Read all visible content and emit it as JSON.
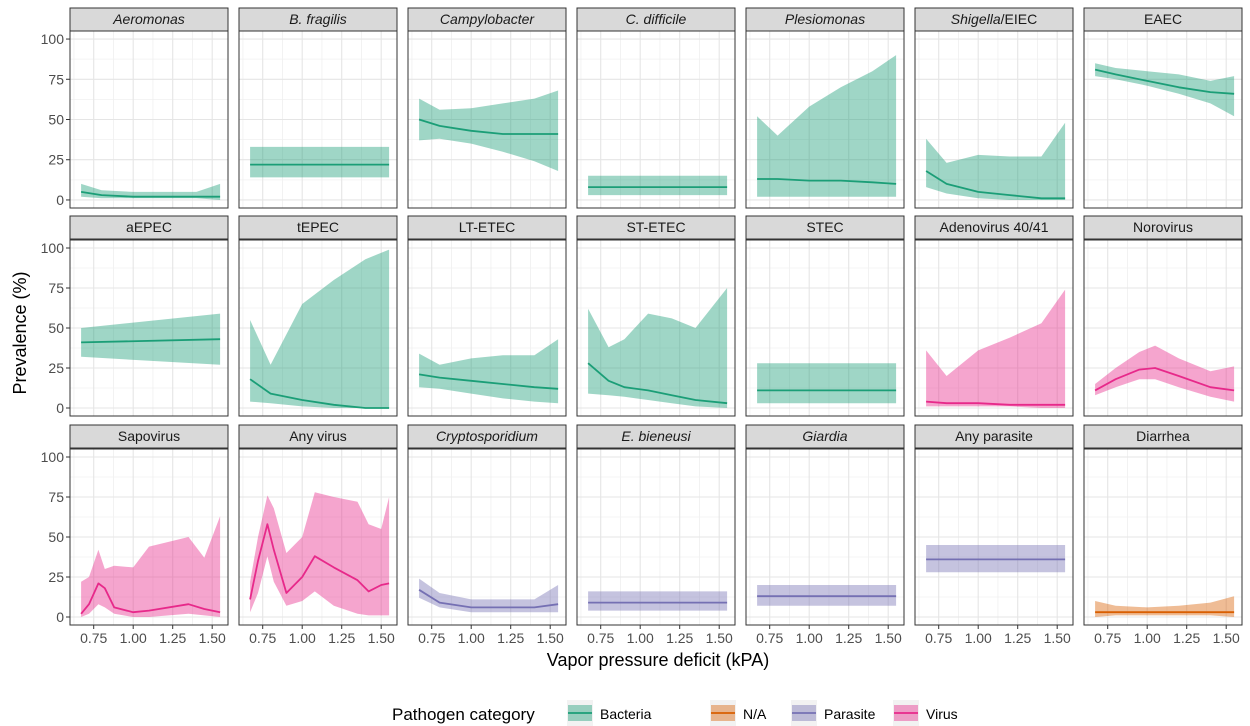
{
  "xlabel": "Vapor pressure deficit (kPA)",
  "ylabel": "Prevalence (%)",
  "x_ticks": [
    0.75,
    1.0,
    1.25,
    1.5
  ],
  "x_tick_labels": [
    "0.75",
    "1.00",
    "1.25",
    "1.50"
  ],
  "y_ticks": [
    0,
    25,
    50,
    75,
    100
  ],
  "y_tick_labels": [
    "0",
    "25",
    "50",
    "75",
    "100"
  ],
  "legend": {
    "title": "Pathogen category",
    "position": "bottom",
    "items": [
      {
        "label": "Bacteria",
        "color": "#1b9e77"
      },
      {
        "label": "N/A",
        "color": "#d95f02"
      },
      {
        "label": "Parasite",
        "color": "#7570b3"
      },
      {
        "label": "Virus",
        "color": "#e7298a"
      }
    ]
  },
  "chart_data": {
    "type": "line",
    "layout": "facet grid 3 rows x 7 columns, shared axes",
    "xlabel": "Vapor pressure deficit (kPA)",
    "ylabel": "Prevalence (%)",
    "xlim": [
      0.6,
      1.6
    ],
    "ylim": [
      -5,
      105
    ],
    "grid": true,
    "confidence_band": true,
    "panels": [
      {
        "title": "Aeromonas",
        "italic": true,
        "category": "Bacteria",
        "x": [
          0.67,
          0.8,
          1.0,
          1.2,
          1.4,
          1.55
        ],
        "y": [
          5,
          3,
          2,
          2,
          2,
          2
        ],
        "lower": [
          2,
          1,
          1,
          1,
          1,
          0
        ],
        "upper": [
          10,
          6,
          5,
          5,
          5,
          10
        ]
      },
      {
        "title": "B. fragilis",
        "italic": true,
        "category": "Bacteria",
        "x": [
          0.67,
          1.55
        ],
        "y": [
          22,
          22
        ],
        "lower": [
          14,
          14
        ],
        "upper": [
          33,
          33
        ]
      },
      {
        "title": "Campylobacter",
        "italic": true,
        "category": "Bacteria",
        "x": [
          0.67,
          0.8,
          1.0,
          1.2,
          1.4,
          1.55
        ],
        "y": [
          50,
          46,
          43,
          41,
          41,
          41
        ],
        "lower": [
          37,
          38,
          35,
          30,
          24,
          18
        ],
        "upper": [
          63,
          56,
          57,
          60,
          63,
          68
        ]
      },
      {
        "title": "C. difficile",
        "italic": true,
        "category": "Bacteria",
        "x": [
          0.67,
          1.55
        ],
        "y": [
          8,
          8
        ],
        "lower": [
          3,
          3
        ],
        "upper": [
          15,
          15
        ]
      },
      {
        "title": "Plesiomonas",
        "italic": true,
        "category": "Bacteria",
        "x": [
          0.67,
          0.8,
          1.0,
          1.2,
          1.4,
          1.55
        ],
        "y": [
          13,
          13,
          12,
          12,
          11,
          10
        ],
        "lower": [
          2,
          2,
          2,
          2,
          2,
          2
        ],
        "upper": [
          52,
          40,
          58,
          70,
          80,
          90
        ]
      },
      {
        "title": "Shigella/EIEC",
        "italic_part": "Shigella",
        "plain_part": "/EIEC",
        "category": "Bacteria",
        "x": [
          0.67,
          0.8,
          1.0,
          1.2,
          1.4,
          1.55
        ],
        "y": [
          18,
          10,
          5,
          3,
          1,
          1
        ],
        "lower": [
          8,
          4,
          1,
          0,
          0,
          0
        ],
        "upper": [
          38,
          23,
          28,
          27,
          27,
          48
        ]
      },
      {
        "title": "EAEC",
        "italic": false,
        "category": "Bacteria",
        "x": [
          0.67,
          0.8,
          1.0,
          1.2,
          1.4,
          1.55
        ],
        "y": [
          81,
          78,
          74,
          70,
          67,
          66
        ],
        "lower": [
          77,
          75,
          71,
          66,
          60,
          52
        ],
        "upper": [
          85,
          82,
          80,
          78,
          74,
          77
        ]
      },
      {
        "title": "aEPEC",
        "italic": false,
        "category": "Bacteria",
        "x": [
          0.67,
          1.55
        ],
        "y": [
          41,
          43
        ],
        "lower": [
          32,
          27
        ],
        "upper": [
          50,
          59
        ]
      },
      {
        "title": "tEPEC",
        "italic": false,
        "category": "Bacteria",
        "x": [
          0.67,
          0.8,
          1.0,
          1.2,
          1.4,
          1.55
        ],
        "y": [
          18,
          9,
          5,
          2,
          0,
          0
        ],
        "lower": [
          4,
          3,
          1,
          0,
          0,
          0
        ],
        "upper": [
          55,
          27,
          65,
          80,
          93,
          99
        ]
      },
      {
        "title": "LT-ETEC",
        "italic": false,
        "category": "Bacteria",
        "x": [
          0.67,
          0.8,
          1.0,
          1.2,
          1.4,
          1.55
        ],
        "y": [
          21,
          19,
          17,
          15,
          13,
          12
        ],
        "lower": [
          13,
          12,
          9,
          6,
          4,
          3
        ],
        "upper": [
          34,
          27,
          31,
          33,
          33,
          43
        ]
      },
      {
        "title": "ST-ETEC",
        "italic": false,
        "category": "Bacteria",
        "x": [
          0.67,
          0.8,
          0.9,
          1.05,
          1.2,
          1.35,
          1.55
        ],
        "y": [
          28,
          17,
          13,
          11,
          8,
          5,
          3
        ],
        "lower": [
          9,
          8,
          7,
          5,
          3,
          1,
          0
        ],
        "upper": [
          62,
          38,
          43,
          59,
          56,
          50,
          75
        ]
      },
      {
        "title": "STEC",
        "italic": false,
        "category": "Bacteria",
        "x": [
          0.67,
          1.55
        ],
        "y": [
          11,
          11
        ],
        "lower": [
          3,
          3
        ],
        "upper": [
          28,
          28
        ]
      },
      {
        "title": "Adenovirus 40/41",
        "italic": false,
        "category": "Virus",
        "x": [
          0.67,
          0.8,
          1.0,
          1.2,
          1.4,
          1.55
        ],
        "y": [
          4,
          3,
          3,
          2,
          2,
          2
        ],
        "lower": [
          1,
          1,
          1,
          1,
          0,
          0
        ],
        "upper": [
          36,
          20,
          36,
          44,
          53,
          74
        ]
      },
      {
        "title": "Norovirus",
        "italic": false,
        "category": "Virus",
        "x": [
          0.67,
          0.8,
          0.95,
          1.05,
          1.2,
          1.4,
          1.55
        ],
        "y": [
          11,
          18,
          24,
          25,
          20,
          13,
          11
        ],
        "lower": [
          8,
          13,
          18,
          18,
          13,
          7,
          4
        ],
        "upper": [
          15,
          25,
          35,
          39,
          31,
          23,
          26
        ]
      },
      {
        "title": "Sapovirus",
        "italic": false,
        "category": "Virus",
        "x": [
          0.67,
          0.72,
          0.78,
          0.82,
          0.88,
          1.0,
          1.1,
          1.35,
          1.45,
          1.55
        ],
        "y": [
          2,
          8,
          21,
          18,
          6,
          3,
          4,
          8,
          5,
          3
        ],
        "lower": [
          0,
          2,
          8,
          6,
          2,
          0,
          0,
          2,
          1,
          0
        ],
        "upper": [
          22,
          25,
          42,
          30,
          32,
          31,
          44,
          50,
          37,
          63
        ]
      },
      {
        "title": "Any virus",
        "italic": false,
        "category": "Virus",
        "x": [
          0.67,
          0.72,
          0.78,
          0.82,
          0.9,
          1.0,
          1.08,
          1.2,
          1.35,
          1.42,
          1.5,
          1.55
        ],
        "y": [
          11,
          35,
          58,
          42,
          15,
          25,
          38,
          31,
          23,
          16,
          20,
          21
        ],
        "lower": [
          3,
          15,
          38,
          22,
          7,
          10,
          16,
          7,
          2,
          1,
          1,
          1
        ],
        "upper": [
          22,
          50,
          76,
          68,
          40,
          50,
          78,
          75,
          72,
          58,
          55,
          75
        ]
      },
      {
        "title": "Cryptosporidium",
        "italic": true,
        "category": "Parasite",
        "x": [
          0.67,
          0.8,
          1.0,
          1.2,
          1.4,
          1.55
        ],
        "y": [
          17,
          9,
          6,
          6,
          6,
          8
        ],
        "lower": [
          12,
          6,
          3,
          3,
          3,
          3
        ],
        "upper": [
          24,
          15,
          11,
          11,
          11,
          20
        ]
      },
      {
        "title": "E. bieneusi",
        "italic": true,
        "category": "Parasite",
        "x": [
          0.67,
          1.55
        ],
        "y": [
          9,
          9
        ],
        "lower": [
          4,
          4
        ],
        "upper": [
          16,
          16
        ]
      },
      {
        "title": "Giardia",
        "italic": true,
        "category": "Parasite",
        "x": [
          0.67,
          1.55
        ],
        "y": [
          13,
          13
        ],
        "lower": [
          7,
          7
        ],
        "upper": [
          20,
          20
        ]
      },
      {
        "title": "Any parasite",
        "italic": false,
        "category": "Parasite",
        "x": [
          0.67,
          1.55
        ],
        "y": [
          36,
          36
        ],
        "lower": [
          28,
          28
        ],
        "upper": [
          45,
          45
        ]
      },
      {
        "title": "Diarrhea",
        "italic": false,
        "category": "N/A",
        "x": [
          0.67,
          0.8,
          1.0,
          1.2,
          1.4,
          1.55
        ],
        "y": [
          3,
          3,
          3,
          3,
          3,
          3
        ],
        "lower": [
          0,
          1,
          1,
          1,
          1,
          0
        ],
        "upper": [
          10,
          7,
          6,
          7,
          9,
          13
        ]
      }
    ]
  }
}
